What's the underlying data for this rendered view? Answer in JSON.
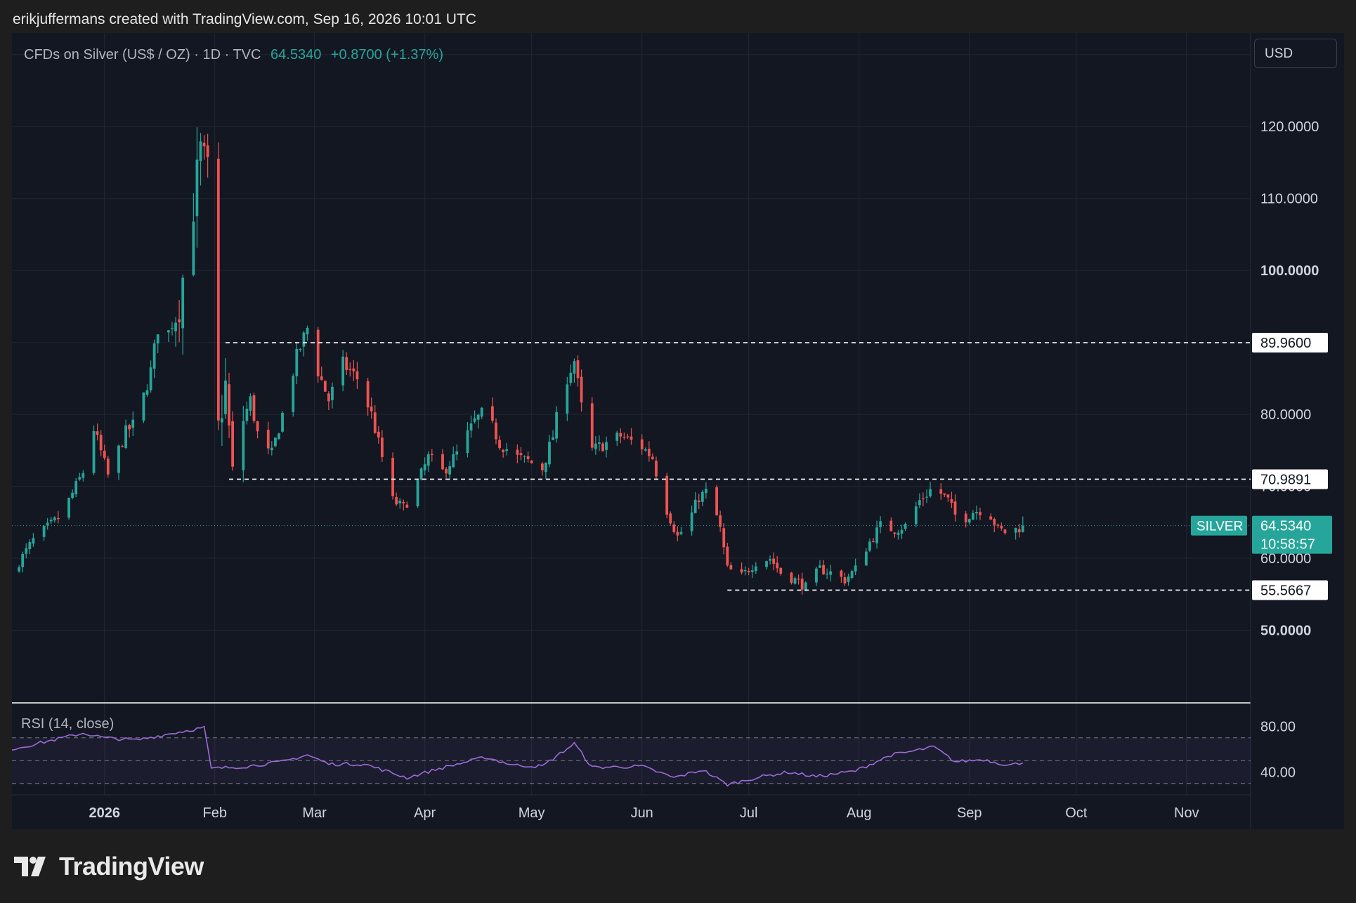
{
  "header": {
    "credit": "erikjuffermans created with TradingView.com, Sep 16, 2026 10:01 UTC"
  },
  "legend": {
    "instrument": "CFDs on Silver (US$ / OZ) · 1D · TVC",
    "last": "64.5340",
    "change": "+0.8700 (+1.37%)"
  },
  "currency": "USD",
  "symbol_tag": "SILVER",
  "countdown": "10:58:57",
  "rsi": {
    "label": "RSI (14, close)",
    "bands": [
      70,
      50,
      30
    ],
    "ticks": [
      "80.00",
      "40.00"
    ]
  },
  "brand": "TradingView",
  "colors": {
    "up": "#26a69a",
    "down": "#ef5350",
    "rsi_line": "#9c6bd6",
    "background": "#131722",
    "grid": "#232734"
  },
  "chart_data": {
    "type": "candlestick",
    "title": "CFDs on Silver (US$ / OZ) · 1D · TVC",
    "x_tick_labels": [
      "2026",
      "Feb",
      "Mar",
      "Apr",
      "May",
      "Jun",
      "Jul",
      "Aug",
      "Sep",
      "Oct",
      "Nov"
    ],
    "x_ticks": [
      "2026-01-01",
      "2026-02-01",
      "2026-03-01",
      "2026-04-01",
      "2026-05-01",
      "2026-06-01",
      "2026-07-01",
      "2026-08-01",
      "2026-09-01",
      "2026-10-01",
      "2026-11-01"
    ],
    "x_range": [
      "2025-12-06",
      "2026-11-19"
    ],
    "y_ticks": [
      "130.0000",
      "120.0000",
      "110.0000",
      "100.0000",
      "80.0000",
      "70.0000",
      "60.0000",
      "50.0000"
    ],
    "ylim": [
      40,
      133
    ],
    "levels": [
      {
        "value": 89.96,
        "label": "89.9600"
      },
      {
        "value": 70.9891,
        "label": "70.9891"
      },
      {
        "value": 55.5667,
        "label": "55.5667"
      }
    ],
    "last_price": {
      "value": 64.534,
      "label": "64.5340"
    },
    "anchors": [
      {
        "date": "2025-12-06",
        "close": 58.0
      },
      {
        "date": "2025-12-12",
        "close": 62.5
      },
      {
        "date": "2025-12-20",
        "close": 66.0
      },
      {
        "date": "2025-12-26",
        "close": 72.0
      },
      {
        "date": "2025-12-29",
        "close": 78.0
      },
      {
        "date": "2026-01-02",
        "close": 71.5
      },
      {
        "date": "2026-01-07",
        "close": 77.5
      },
      {
        "date": "2026-01-10",
        "close": 79.0
      },
      {
        "date": "2026-01-14",
        "close": 86.0
      },
      {
        "date": "2026-01-16",
        "close": 92.0
      },
      {
        "date": "2026-01-18",
        "close": 90.0
      },
      {
        "date": "2026-01-22",
        "close": 95.5
      },
      {
        "date": "2026-01-25",
        "close": 106.0
      },
      {
        "date": "2026-01-28",
        "close": 116.0
      },
      {
        "date": "2026-01-30",
        "close": 113.0
      },
      {
        "date": "2026-01-31",
        "close": 86.0
      },
      {
        "date": "2026-02-02",
        "close": 78.0
      },
      {
        "date": "2026-02-04",
        "close": 84.0
      },
      {
        "date": "2026-02-06",
        "close": 71.5
      },
      {
        "date": "2026-02-08",
        "close": 78.0
      },
      {
        "date": "2026-02-11",
        "close": 82.0
      },
      {
        "date": "2026-02-14",
        "close": 75.0
      },
      {
        "date": "2026-02-17",
        "close": 74.5
      },
      {
        "date": "2026-02-20",
        "close": 80.0
      },
      {
        "date": "2026-02-24",
        "close": 88.0
      },
      {
        "date": "2026-02-27",
        "close": 92.0
      },
      {
        "date": "2026-03-02",
        "close": 86.0
      },
      {
        "date": "2026-03-05",
        "close": 82.0
      },
      {
        "date": "2026-03-09",
        "close": 87.0
      },
      {
        "date": "2026-03-13",
        "close": 85.0
      },
      {
        "date": "2026-03-17",
        "close": 80.0
      },
      {
        "date": "2026-03-20",
        "close": 74.0
      },
      {
        "date": "2026-03-23",
        "close": 68.0
      },
      {
        "date": "2026-03-26",
        "close": 67.0
      },
      {
        "date": "2026-03-30",
        "close": 70.5
      },
      {
        "date": "2026-04-02",
        "close": 74.0
      },
      {
        "date": "2026-04-06",
        "close": 72.0
      },
      {
        "date": "2026-04-10",
        "close": 74.5
      },
      {
        "date": "2026-04-15",
        "close": 79.0
      },
      {
        "date": "2026-04-18",
        "close": 80.5
      },
      {
        "date": "2026-04-22",
        "close": 76.0
      },
      {
        "date": "2026-04-27",
        "close": 74.0
      },
      {
        "date": "2026-04-30",
        "close": 73.5
      },
      {
        "date": "2026-05-04",
        "close": 72.5
      },
      {
        "date": "2026-05-07",
        "close": 77.0
      },
      {
        "date": "2026-05-10",
        "close": 84.0
      },
      {
        "date": "2026-05-13",
        "close": 87.5
      },
      {
        "date": "2026-05-15",
        "close": 81.0
      },
      {
        "date": "2026-05-18",
        "close": 75.0
      },
      {
        "date": "2026-05-22",
        "close": 76.0
      },
      {
        "date": "2026-05-26",
        "close": 77.0
      },
      {
        "date": "2026-06-01",
        "close": 75.5
      },
      {
        "date": "2026-06-04",
        "close": 74.0
      },
      {
        "date": "2026-06-07",
        "close": 68.0
      },
      {
        "date": "2026-06-11",
        "close": 63.0
      },
      {
        "date": "2026-06-14",
        "close": 65.0
      },
      {
        "date": "2026-06-17",
        "close": 68.5
      },
      {
        "date": "2026-06-20",
        "close": 69.5
      },
      {
        "date": "2026-06-23",
        "close": 64.0
      },
      {
        "date": "2026-06-25",
        "close": 58.5
      },
      {
        "date": "2026-06-29",
        "close": 57.5
      },
      {
        "date": "2026-07-03",
        "close": 59.5
      },
      {
        "date": "2026-07-07",
        "close": 60.0
      },
      {
        "date": "2026-07-10",
        "close": 58.0
      },
      {
        "date": "2026-07-14",
        "close": 57.0
      },
      {
        "date": "2026-07-17",
        "close": 56.0
      },
      {
        "date": "2026-07-21",
        "close": 58.5
      },
      {
        "date": "2026-07-24",
        "close": 58.0
      },
      {
        "date": "2026-07-28",
        "close": 57.0
      },
      {
        "date": "2026-07-31",
        "close": 58.5
      },
      {
        "date": "2026-08-03",
        "close": 61.5
      },
      {
        "date": "2026-08-07",
        "close": 64.5
      },
      {
        "date": "2026-08-11",
        "close": 64.0
      },
      {
        "date": "2026-08-14",
        "close": 64.5
      },
      {
        "date": "2026-08-18",
        "close": 68.0
      },
      {
        "date": "2026-08-21",
        "close": 69.5
      },
      {
        "date": "2026-08-24",
        "close": 69.0
      },
      {
        "date": "2026-08-26",
        "close": 68.0
      },
      {
        "date": "2026-08-29",
        "close": 65.0
      },
      {
        "date": "2026-09-02",
        "close": 66.5
      },
      {
        "date": "2026-09-06",
        "close": 67.0
      },
      {
        "date": "2026-09-09",
        "close": 64.0
      },
      {
        "date": "2026-09-12",
        "close": 63.5
      },
      {
        "date": "2026-09-16",
        "close": 64.534
      }
    ],
    "rsi_anchors": [
      {
        "date": "2025-12-06",
        "value": 60
      },
      {
        "date": "2025-12-26",
        "value": 74
      },
      {
        "date": "2026-01-01",
        "value": 70
      },
      {
        "date": "2026-01-10",
        "value": 68
      },
      {
        "date": "2026-01-20",
        "value": 74
      },
      {
        "date": "2026-01-29",
        "value": 79
      },
      {
        "date": "2026-01-31",
        "value": 43
      },
      {
        "date": "2026-02-10",
        "value": 45
      },
      {
        "date": "2026-02-20",
        "value": 49
      },
      {
        "date": "2026-02-27",
        "value": 55
      },
      {
        "date": "2026-03-05",
        "value": 47
      },
      {
        "date": "2026-03-15",
        "value": 47
      },
      {
        "date": "2026-03-27",
        "value": 35
      },
      {
        "date": "2026-04-05",
        "value": 43
      },
      {
        "date": "2026-04-18",
        "value": 53
      },
      {
        "date": "2026-04-26",
        "value": 46
      },
      {
        "date": "2026-05-04",
        "value": 45
      },
      {
        "date": "2026-05-13",
        "value": 65
      },
      {
        "date": "2026-05-18",
        "value": 44
      },
      {
        "date": "2026-06-01",
        "value": 45
      },
      {
        "date": "2026-06-10",
        "value": 35
      },
      {
        "date": "2026-06-18",
        "value": 42
      },
      {
        "date": "2026-06-25",
        "value": 29
      },
      {
        "date": "2026-07-03",
        "value": 35
      },
      {
        "date": "2026-07-12",
        "value": 40
      },
      {
        "date": "2026-07-20",
        "value": 36
      },
      {
        "date": "2026-07-31",
        "value": 41
      },
      {
        "date": "2026-08-10",
        "value": 55
      },
      {
        "date": "2026-08-14",
        "value": 57
      },
      {
        "date": "2026-08-22",
        "value": 62
      },
      {
        "date": "2026-08-28",
        "value": 49
      },
      {
        "date": "2026-09-05",
        "value": 51
      },
      {
        "date": "2026-09-12",
        "value": 46
      },
      {
        "date": "2026-09-16",
        "value": 48
      }
    ]
  }
}
